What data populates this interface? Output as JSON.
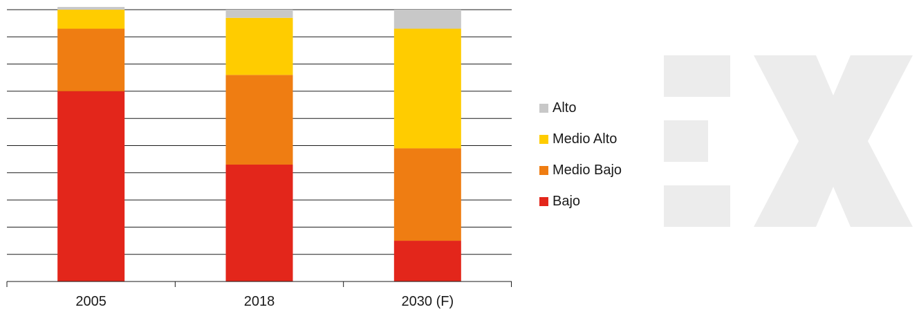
{
  "chart_data": {
    "type": "bar",
    "stacked": true,
    "categories": [
      "2005",
      "2018",
      "2030 (F)"
    ],
    "ylim": [
      0,
      100
    ],
    "grid": true,
    "legend_position": "right",
    "series": [
      {
        "name": "Bajo",
        "color": "#e3261b",
        "values": [
          70,
          43,
          15
        ]
      },
      {
        "name": "Medio Bajo",
        "color": "#ef7d12",
        "values": [
          23,
          33,
          34
        ]
      },
      {
        "name": "Medio Alto",
        "color": "#ffcc00",
        "values": [
          7,
          21,
          44
        ]
      },
      {
        "name": "Alto",
        "color": "#c8c8c8",
        "values": [
          1,
          3,
          7
        ]
      }
    ],
    "legend_order": [
      "Alto",
      "Medio Alto",
      "Medio Bajo",
      "Bajo"
    ]
  }
}
